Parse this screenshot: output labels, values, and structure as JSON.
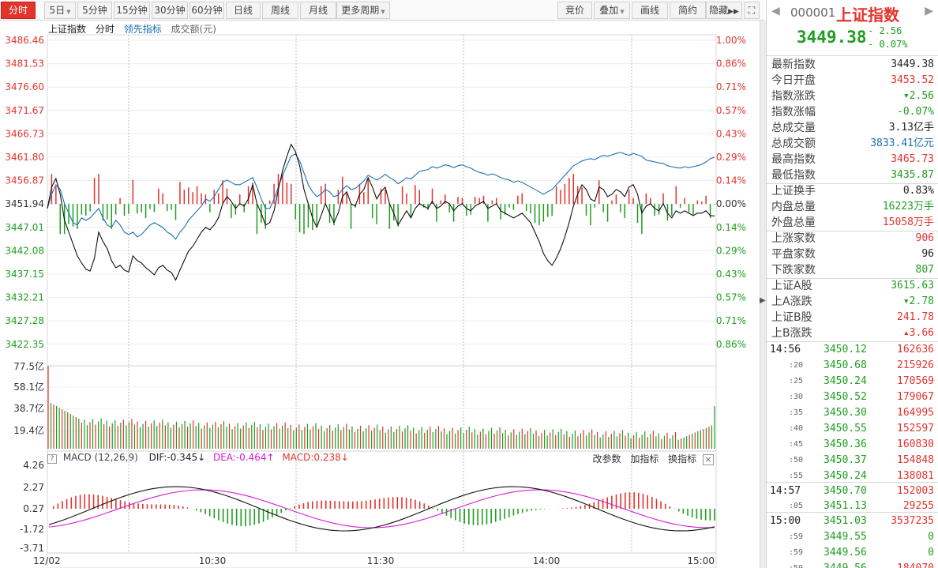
{
  "toolbar": {
    "left": [
      "分时",
      "5日",
      "5分钟",
      "15分钟",
      "30分钟",
      "60分钟",
      "日线",
      "周线",
      "月线",
      "更多周期"
    ],
    "right": [
      "竞价",
      "叠加",
      "画线",
      "简约",
      "隐藏"
    ]
  },
  "legend": {
    "name": "上证指数",
    "mode": "分时",
    "lead": "领先指标",
    "vol": "成交额(元)"
  },
  "price_axis": [
    "3486.46",
    "3481.53",
    "3476.60",
    "3471.67",
    "3466.73",
    "3461.80",
    "3456.87",
    "3451.94",
    "3447.01",
    "3442.08",
    "3437.15",
    "3432.21",
    "3427.28",
    "3422.35"
  ],
  "pct_axis": [
    "1.00%",
    "0.86%",
    "0.71%",
    "0.57%",
    "0.43%",
    "0.29%",
    "0.14%",
    "0.00%",
    "0.14%",
    "0.29%",
    "0.43%",
    "0.57%",
    "0.71%",
    "0.86%"
  ],
  "vol_axis": [
    "77.5亿",
    "58.1亿",
    "38.7亿",
    "19.4亿"
  ],
  "macd_axis": [
    "4.26",
    "2.27",
    "0.27",
    "-1.72",
    "-3.71"
  ],
  "time_axis": [
    "12/02",
    "10:30",
    "11:30",
    "14:00",
    "15:00"
  ],
  "macd": {
    "title": "MACD (12,26,9)",
    "dif": "DIF:-0.345",
    "dea": "DEA:-0.464",
    "macd": "MACD:0.238",
    "btns": [
      "改参数",
      "加指标",
      "换指标"
    ]
  },
  "colors": {
    "up": "#e3332d",
    "down": "#1f9d1f",
    "blue": "#1a6fb5",
    "magenta": "#d81bd8"
  },
  "chart_data": {
    "type": "line",
    "ylim": [
      3422.35,
      3486.46
    ],
    "prev_close": 3451.94,
    "price": [
      3451.0,
      3455.5,
      3457.3,
      3454.0,
      3448.5,
      3446.0,
      3443.5,
      3441.0,
      3439.5,
      3438.2,
      3437.8,
      3440.5,
      3446.0,
      3444.0,
      3442.5,
      3440.0,
      3438.5,
      3439.0,
      3438.0,
      3437.6,
      3441.0,
      3440.0,
      3439.5,
      3438.5,
      3437.8,
      3437.0,
      3438.5,
      3439.0,
      3438.0,
      3437.5,
      3435.9,
      3438.0,
      3440.0,
      3442.0,
      3443.0,
      3444.5,
      3446.0,
      3447.0,
      3446.5,
      3447.5,
      3449.0,
      3452.0,
      3453.5,
      3452.5,
      3451.0,
      3452.0,
      3451.5,
      3453.0,
      3456.0,
      3452.0,
      3450.0,
      3447.5,
      3448.0,
      3450.5,
      3455.0,
      3459.0,
      3462.0,
      3464.5,
      3463.0,
      3460.0,
      3455.0,
      3452.0,
      3449.0,
      3447.0,
      3449.5,
      3452.0,
      3450.0,
      3448.0,
      3450.0,
      3453.5,
      3454.5,
      3452.0,
      3451.5,
      3454.0,
      3455.0,
      3457.5,
      3455.5,
      3453.0,
      3454.5,
      3455.5,
      3452.0,
      3450.0,
      3447.5,
      3449.0,
      3450.5,
      3449.0,
      3451.0,
      3452.0,
      3451.5,
      3451.0,
      3452.5,
      3451.0,
      3451.5,
      3452.5,
      3452.0,
      3450.5,
      3451.5,
      3452.0,
      3451.0,
      3450.5,
      3451.5,
      3452.0,
      3452.5,
      3451.0,
      3451.5,
      3452.0,
      3450.5,
      3450.0,
      3449.5,
      3449.0,
      3449.5,
      3450.0,
      3449.0,
      3448.0,
      3446.0,
      3444.0,
      3441.5,
      3440.0,
      3439.0,
      3440.5,
      3442.5,
      3445.0,
      3448.0,
      3451.5,
      3454.0,
      3456.0,
      3455.0,
      3453.0,
      3452.5,
      3455.5,
      3455.0,
      3453.5,
      3454.0,
      3455.0,
      3454.5,
      3453.5,
      3455.5,
      3456.0,
      3454.0,
      3450.0,
      3451.5,
      3452.0,
      3451.0,
      3450.5,
      3452.0,
      3450.0,
      3449.0,
      3450.5,
      3450.0,
      3450.5,
      3450.0,
      3449.5,
      3450.0,
      3450.0,
      3450.5,
      3449.5,
      3449.4
    ],
    "avg": [
      3451.0,
      3454.0,
      3456.0,
      3455.0,
      3452.0,
      3450.0,
      3448.0,
      3447.5,
      3449.0,
      3448.5,
      3449.0,
      3450.0,
      3451.0,
      3449.0,
      3447.5,
      3447.0,
      3448.5,
      3447.5,
      3446.0,
      3445.5,
      3446.0,
      3445.0,
      3445.5,
      3446.5,
      3447.5,
      3448.0,
      3447.5,
      3447.0,
      3446.0,
      3445.5,
      3444.5,
      3446.0,
      3447.0,
      3448.5,
      3449.5,
      3450.5,
      3451.5,
      3453.0,
      3452.5,
      3453.5,
      3455.0,
      3456.5,
      3457.0,
      3456.5,
      3456.0,
      3456.0,
      3456.5,
      3457.0,
      3457.5,
      3455.5,
      3453.0,
      3451.0,
      3451.0,
      3453.0,
      3455.5,
      3458.0,
      3460.0,
      3462.0,
      3462.5,
      3461.0,
      3458.5,
      3456.0,
      3454.5,
      3453.5,
      3454.0,
      3455.0,
      3454.5,
      3453.5,
      3453.8,
      3455.0,
      3455.8,
      3455.0,
      3455.2,
      3456.0,
      3456.8,
      3458.0,
      3457.5,
      3457.0,
      3457.5,
      3458.2,
      3457.5,
      3457.0,
      3456.2,
      3456.8,
      3457.5,
      3457.2,
      3458.0,
      3458.8,
      3459.0,
      3459.2,
      3459.8,
      3459.5,
      3459.8,
      3460.2,
      3460.0,
      3459.6,
      3460.0,
      3460.2,
      3459.8,
      3459.5,
      3459.0,
      3458.6,
      3458.4,
      3458.0,
      3458.3,
      3458.0,
      3457.5,
      3457.2,
      3457.0,
      3456.5,
      3456.8,
      3456.5,
      3456.0,
      3455.5,
      3455.0,
      3454.5,
      3454.0,
      3454.5,
      3455.0,
      3456.0,
      3457.0,
      3458.0,
      3459.0,
      3460.0,
      3460.5,
      3461.0,
      3461.3,
      3461.5,
      3461.3,
      3461.8,
      3462.2,
      3462.0,
      3462.3,
      3462.6,
      3462.8,
      3462.5,
      3462.2,
      3462.6,
      3462.3,
      3462.0,
      3461.2,
      3461.0,
      3460.8,
      3460.6,
      3460.5,
      3460.0,
      3459.8,
      3459.6,
      3459.5,
      3459.8,
      3459.6,
      3459.8,
      3460.0,
      3460.3,
      3460.8,
      3461.5,
      3461.8
    ]
  },
  "right_panel": {
    "code": "000001",
    "name": "上证指数",
    "last": "3449.38",
    "chg": "- 2.56",
    "pct": "- 0.07%",
    "stats": [
      {
        "k": "最新指数",
        "v": "3449.38",
        "c": "blk"
      },
      {
        "k": "今日开盘",
        "v": "3453.52",
        "c": "red"
      },
      {
        "k": "指数涨跌",
        "v": "▾2.56",
        "c": "green"
      },
      {
        "k": "指数涨幅",
        "v": "-0.07%",
        "c": "green"
      },
      {
        "k": "总成交量",
        "v": "3.13亿手",
        "c": "blk"
      },
      {
        "k": "总成交额",
        "v": "3833.41亿元",
        "c": "blue"
      },
      {
        "k": "最高指数",
        "v": "3465.73",
        "c": "red"
      },
      {
        "k": "最低指数",
        "v": "3435.87",
        "c": "green"
      }
    ],
    "stats2": [
      {
        "k": "上证换手",
        "v": "0.83%",
        "c": "blk"
      },
      {
        "k": "内盘总量",
        "v": "16223万手",
        "c": "green"
      },
      {
        "k": "外盘总量",
        "v": "15058万手",
        "c": "red"
      }
    ],
    "stats3": [
      {
        "k": "上涨家数",
        "v": "906",
        "c": "red"
      },
      {
        "k": "平盘家数",
        "v": "96",
        "c": "blk"
      },
      {
        "k": "下跌家数",
        "v": "807",
        "c": "green"
      }
    ],
    "stats4": [
      {
        "k": "上证A股",
        "v": "3615.63",
        "c": "green"
      },
      {
        "k": "上A涨跌",
        "v": "▾2.78",
        "c": "green"
      },
      {
        "k": "上证B股",
        "v": "241.78",
        "c": "red"
      },
      {
        "k": "上B涨跌",
        "v": "▴3.66",
        "c": "red"
      }
    ],
    "ticks": [
      {
        "t": "14:56",
        "s": false,
        "p": "3450.12",
        "q": "162636"
      },
      {
        "t": ":20",
        "s": true,
        "p": "3450.68",
        "q": "215926"
      },
      {
        "t": ":25",
        "s": true,
        "p": "3450.24",
        "q": "170569"
      },
      {
        "t": ":30",
        "s": true,
        "p": "3450.52",
        "q": "179067"
      },
      {
        "t": ":35",
        "s": true,
        "p": "3450.30",
        "q": "164995"
      },
      {
        "t": ":40",
        "s": true,
        "p": "3450.55",
        "q": "152597"
      },
      {
        "t": ":45",
        "s": true,
        "p": "3450.36",
        "q": "160830"
      },
      {
        "t": ":50",
        "s": true,
        "p": "3450.37",
        "q": "154848"
      },
      {
        "t": ":55",
        "s": true,
        "p": "3450.24",
        "q": "138081"
      },
      {
        "t": "14:57",
        "s": false,
        "p": "3450.70",
        "q": "152003"
      },
      {
        "t": ":05",
        "s": true,
        "p": "3451.13",
        "q": "29255"
      },
      {
        "t": "15:00",
        "s": false,
        "p": "3451.03",
        "q": "3537235"
      },
      {
        "t": ":59",
        "s": true,
        "p": "3449.55",
        "q": "0"
      },
      {
        "t": ":59",
        "s": true,
        "p": "3449.56",
        "q": "0"
      },
      {
        "t": ":59",
        "s": true,
        "p": "3449.56",
        "q": "184070"
      }
    ]
  }
}
